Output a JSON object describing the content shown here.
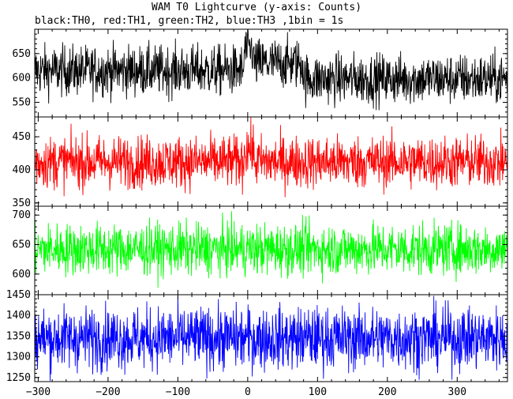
{
  "title": "WAM T0 Lightcurve (y-axis: Counts)",
  "subtitle": "black:TH0, red:TH1, green:TH2, blue:TH3 ,1bin = 1s",
  "colors": {
    "TH0": "#000000",
    "TH1": "#ff0000",
    "TH2": "#00ff00",
    "TH3": "#0000ff"
  },
  "chart_data": {
    "type": "line",
    "x_range": [
      -305,
      372
    ],
    "x_ticks": [
      -300,
      -200,
      -100,
      0,
      100,
      200,
      300
    ],
    "bin_seconds": 1,
    "panels": [
      {
        "name": "TH0",
        "color": "#000000",
        "ylim": [
          520,
          700
        ],
        "y_ticks": [
          550,
          600,
          650
        ],
        "mean": 615,
        "noise": 26,
        "features": [
          {
            "from": 0,
            "to": 80,
            "mean": 630
          },
          {
            "from": -5,
            "to": 8,
            "mean": 658
          },
          {
            "from": 80,
            "to": 372,
            "mean": 598
          }
        ]
      },
      {
        "name": "TH1",
        "color": "#ff0000",
        "ylim": [
          345,
          480
        ],
        "y_ticks": [
          350,
          400,
          450
        ],
        "mean": 412,
        "noise": 20,
        "features": [
          {
            "from": -5,
            "to": 8,
            "mean": 432
          }
        ]
      },
      {
        "name": "TH2",
        "color": "#00ff00",
        "ylim": [
          565,
          715
        ],
        "y_ticks": [
          600,
          650,
          700
        ],
        "mean": 642,
        "noise": 22,
        "features": []
      },
      {
        "name": "TH3",
        "color": "#0000ff",
        "ylim": [
          1240,
          1450
        ],
        "y_ticks": [
          1250,
          1300,
          1350,
          1400,
          1450
        ],
        "mean": 1345,
        "noise": 38,
        "features": []
      }
    ]
  }
}
